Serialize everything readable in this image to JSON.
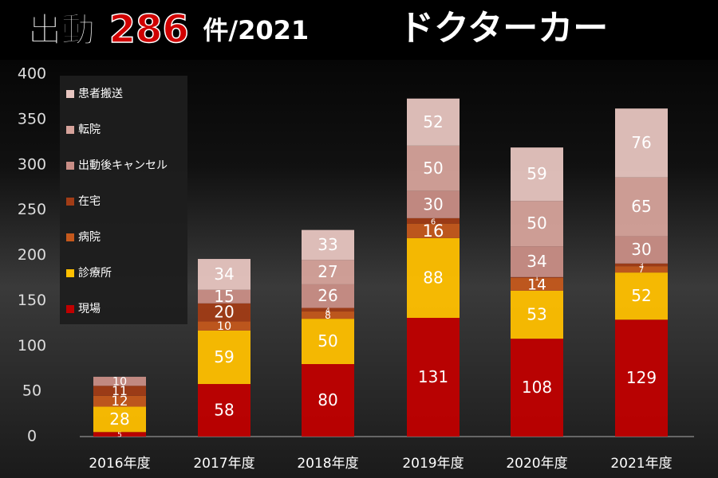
{
  "chart_data": {
    "type": "stacked_bar",
    "title_prefix": "出動",
    "title_number": 286,
    "title_suffix": "件/2021",
    "subtitle": "ドクターカー",
    "categories": [
      "2016年度",
      "2017年度",
      "2018年度",
      "2019年度",
      "2020年度",
      "2021年度"
    ],
    "series": [
      {
        "name": "現場",
        "color": "#c00000",
        "values": [
          5,
          58,
          80,
          131,
          108,
          129
        ]
      },
      {
        "name": "診療所",
        "color": "#ffc000",
        "values": [
          28,
          59,
          50,
          88,
          53,
          52
        ]
      },
      {
        "name": "病院",
        "color": "#c4581c",
        "values": [
          12,
          10,
          8,
          16,
          14,
          7
        ]
      },
      {
        "name": "在宅",
        "color": "#a13c16",
        "values": [
          11,
          20,
          4,
          6,
          1,
          3
        ]
      },
      {
        "name": "出動後キャンセル",
        "color": "#c98e86",
        "values": [
          10,
          15,
          26,
          30,
          34,
          30
        ]
      },
      {
        "name": "転院",
        "color": "#d6a39b",
        "values": [
          null,
          null,
          27,
          50,
          50,
          65
        ]
      },
      {
        "name": "患者搬送",
        "color": "#e7c5c0",
        "values": [
          null,
          34,
          33,
          52,
          59,
          76
        ]
      }
    ],
    "ylim": [
      0,
      400
    ],
    "yticks": [
      0,
      50,
      100,
      150,
      200,
      250,
      300,
      350,
      400
    ],
    "legend": "upper-left"
  }
}
